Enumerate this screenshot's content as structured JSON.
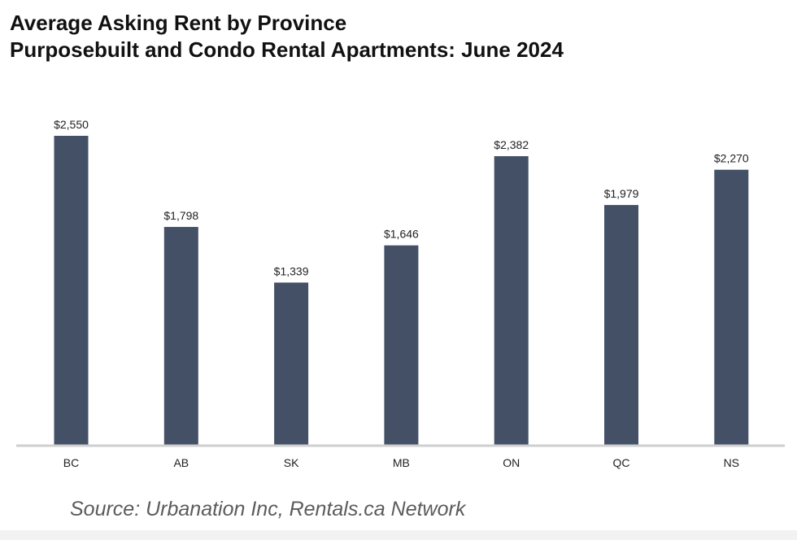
{
  "chart_data": {
    "type": "bar",
    "title": "Average Asking Rent by Province",
    "subtitle": "Purposebuilt and Condo Rental Apartments: June 2024",
    "categories": [
      "BC",
      "AB",
      "SK",
      "MB",
      "ON",
      "QC",
      "NS"
    ],
    "values": [
      2550,
      1798,
      1339,
      1646,
      2382,
      1979,
      2270
    ],
    "data_labels": [
      "$2,550",
      "$1,798",
      "$1,339",
      "$1,646",
      "$2,382",
      "$1,979",
      "$2,270"
    ],
    "bar_color": "#435066",
    "axis_color": "#cfcfcf",
    "ylim": [
      0,
      2550
    ],
    "grid": false,
    "legend": "none",
    "xlabel": "",
    "ylabel": ""
  },
  "source": "Source: Urbanation Inc, Rentals.ca Network"
}
